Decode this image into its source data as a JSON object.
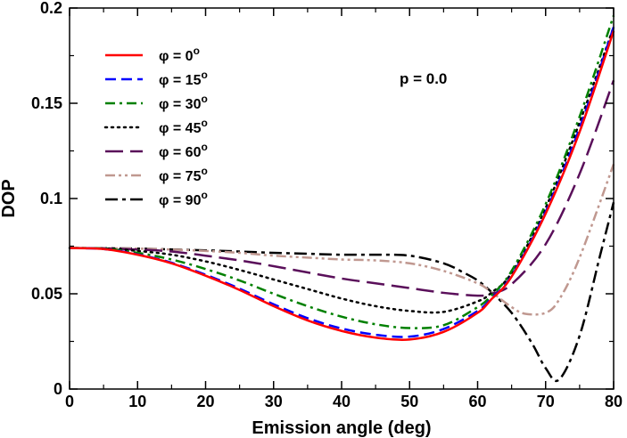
{
  "chart_data": {
    "type": "line",
    "title": "",
    "xlabel": "Emission angle (deg)",
    "ylabel": "DOP",
    "xlim": [
      0,
      80
    ],
    "ylim": [
      0,
      0.2
    ],
    "xticks": [
      0,
      10,
      20,
      30,
      40,
      50,
      60,
      70,
      80
    ],
    "yticks": [
      0,
      0.05,
      0.1,
      0.15,
      0.2
    ],
    "xtick_labels": [
      "0",
      "10",
      "20",
      "30",
      "40",
      "50",
      "60",
      "70",
      "80"
    ],
    "ytick_labels": [
      "0",
      "0.05",
      "0.1",
      "0.15",
      "0.2"
    ],
    "grid": false,
    "legend_position": "top-left",
    "annotation": "p = 0.0",
    "series": [
      {
        "name": "φ = 0°",
        "label_prefix": "φ = 0",
        "label_sup": "o",
        "color": "#ff0000",
        "dash": "solid",
        "x": [
          0,
          5,
          10,
          15,
          20,
          25,
          30,
          35,
          40,
          45,
          50,
          55,
          60,
          62,
          65,
          70,
          75,
          80
        ],
        "y": [
          0.074,
          0.0735,
          0.0705,
          0.066,
          0.0595,
          0.052,
          0.0435,
          0.036,
          0.0305,
          0.027,
          0.026,
          0.03,
          0.04,
          0.047,
          0.059,
          0.092,
          0.135,
          0.188
        ]
      },
      {
        "name": "φ = 15°",
        "label_prefix": "φ = 15",
        "label_sup": "o",
        "color": "#0000ff",
        "dash": "dashed",
        "x": [
          0,
          5,
          10,
          15,
          20,
          25,
          30,
          35,
          40,
          45,
          50,
          55,
          60,
          62,
          65,
          70,
          75,
          80
        ],
        "y": [
          0.074,
          0.0735,
          0.0707,
          0.0663,
          0.06,
          0.0527,
          0.0445,
          0.0372,
          0.0318,
          0.0285,
          0.0275,
          0.0315,
          0.041,
          0.0475,
          0.0595,
          0.093,
          0.137,
          0.19
        ]
      },
      {
        "name": "φ = 30°",
        "label_prefix": "φ = 30",
        "label_sup": "o",
        "color": "#008000",
        "dash": "dashdot",
        "x": [
          0,
          5,
          10,
          15,
          20,
          25,
          30,
          35,
          40,
          45,
          50,
          55,
          60,
          62,
          65,
          70,
          75,
          80
        ],
        "y": [
          0.074,
          0.0737,
          0.0715,
          0.068,
          0.063,
          0.057,
          0.05,
          0.0435,
          0.038,
          0.034,
          0.032,
          0.0335,
          0.043,
          0.049,
          0.062,
          0.097,
          0.143,
          0.196
        ]
      },
      {
        "name": "φ = 45°",
        "label_prefix": "φ = 45",
        "label_sup": "o",
        "color": "#000000",
        "dash": "dotted",
        "x": [
          0,
          5,
          10,
          15,
          20,
          25,
          30,
          35,
          40,
          45,
          50,
          55,
          60,
          62,
          65,
          70,
          75,
          80
        ],
        "y": [
          0.074,
          0.0738,
          0.0725,
          0.0705,
          0.067,
          0.0625,
          0.0575,
          0.0525,
          0.0475,
          0.0435,
          0.041,
          0.0405,
          0.046,
          0.0505,
          0.061,
          0.095,
          0.14,
          0.19
        ]
      },
      {
        "name": "φ = 60°",
        "label_prefix": "φ = 60",
        "label_sup": "o",
        "color": "#5a0f5a",
        "dash": "longdash",
        "x": [
          0,
          5,
          10,
          15,
          20,
          25,
          30,
          35,
          40,
          45,
          50,
          55,
          60,
          62,
          65,
          70,
          75,
          80
        ],
        "y": [
          0.074,
          0.0738,
          0.0732,
          0.0722,
          0.07,
          0.0675,
          0.0645,
          0.0612,
          0.058,
          0.0555,
          0.053,
          0.0505,
          0.049,
          0.05,
          0.055,
          0.076,
          0.113,
          0.162
        ]
      },
      {
        "name": "φ = 75°",
        "label_prefix": "φ = 75",
        "label_sup": "o",
        "color": "#c09890",
        "dash": "dashdotdot",
        "x": [
          0,
          5,
          10,
          15,
          20,
          25,
          30,
          35,
          40,
          45,
          50,
          55,
          60,
          62,
          65,
          67,
          70,
          72,
          75,
          80
        ],
        "y": [
          0.074,
          0.0739,
          0.0737,
          0.0732,
          0.0725,
          0.0715,
          0.07,
          0.069,
          0.068,
          0.0675,
          0.066,
          0.062,
          0.0555,
          0.051,
          0.043,
          0.0395,
          0.04,
          0.047,
          0.069,
          0.118
        ]
      },
      {
        "name": "φ = 90°",
        "label_prefix": "φ = 90",
        "label_sup": "o",
        "color": "#000000",
        "dash": "longdashdot",
        "x": [
          0,
          5,
          10,
          15,
          20,
          25,
          30,
          35,
          40,
          45,
          50,
          55,
          58,
          60,
          62,
          65,
          68,
          70,
          72,
          75,
          78,
          80
        ],
        "y": [
          0.074,
          0.0739,
          0.0737,
          0.0733,
          0.0728,
          0.0722,
          0.0715,
          0.071,
          0.0705,
          0.0705,
          0.07,
          0.066,
          0.061,
          0.057,
          0.051,
          0.04,
          0.024,
          0.011,
          0.005,
          0.028,
          0.07,
          0.098
        ]
      }
    ]
  }
}
